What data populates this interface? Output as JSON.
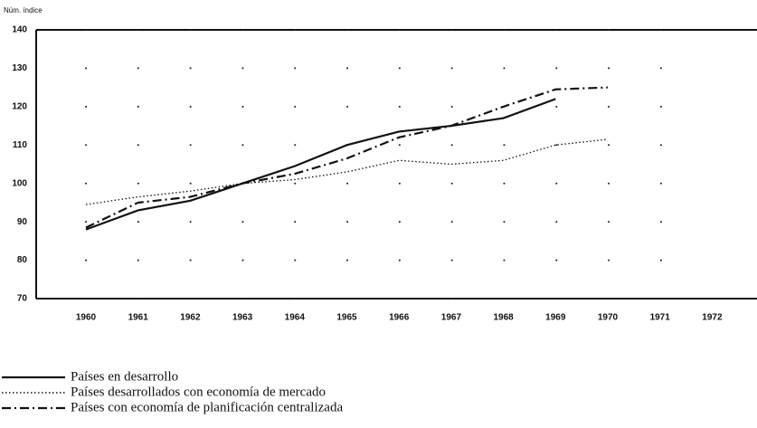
{
  "chart_data": {
    "type": "line",
    "y_label": "Núm. índice",
    "categories": [
      "1960",
      "1961",
      "1962",
      "1963",
      "1964",
      "1965",
      "1966",
      "1967",
      "1968",
      "1969",
      "1970",
      "1971",
      "1972"
    ],
    "series": [
      {
        "name": "Países en desarrollo",
        "color": "#111111",
        "dash": "solid",
        "values": [
          88,
          93,
          95.5,
          100,
          104.5,
          110,
          113.5,
          115,
          117,
          122,
          null,
          null,
          null
        ]
      },
      {
        "name": "Países desarrollados con economía de mercado",
        "color": "#111111",
        "dash": "dotted",
        "values": [
          94.5,
          96.5,
          98,
          100,
          101,
          103,
          106,
          105,
          106,
          110,
          111.5,
          null,
          null
        ]
      },
      {
        "name": "Países con economía de planificación centralizada",
        "color": "#111111",
        "dash": "dashdot",
        "values": [
          88.5,
          95,
          96.5,
          100,
          102.5,
          106.5,
          112,
          115,
          120,
          124.5,
          125,
          null,
          null
        ]
      }
    ],
    "ylim": [
      70,
      140
    ],
    "yticks": [
      70,
      80,
      90,
      100,
      110,
      120,
      130,
      140
    ],
    "grid": true
  }
}
